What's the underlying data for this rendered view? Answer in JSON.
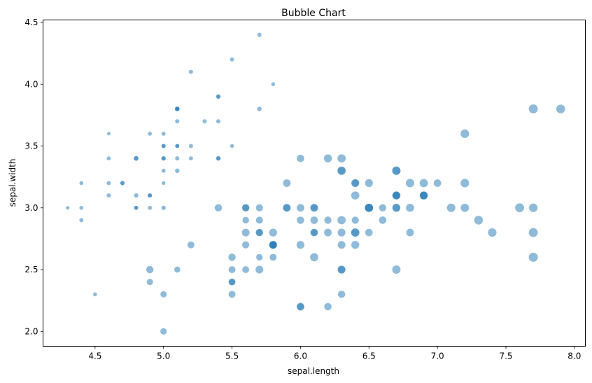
{
  "chart_data": {
    "type": "scatter",
    "title": "Bubble Chart",
    "xlabel": "sepal.length",
    "ylabel": "sepal.width",
    "xlim": [
      4.12,
      8.08
    ],
    "ylim": [
      1.88,
      4.52
    ],
    "xticks": [
      4.5,
      5.0,
      5.5,
      6.0,
      6.5,
      7.0,
      7.5,
      8.0
    ],
    "yticks": [
      2.0,
      2.5,
      3.0,
      3.5,
      4.0,
      4.5
    ],
    "marker_color": "#1f77b4",
    "marker_alpha": 0.5,
    "size_encoding": "petal.length",
    "grid": false,
    "points": [
      {
        "x": 5.1,
        "y": 3.5,
        "size": 1.4
      },
      {
        "x": 4.9,
        "y": 3.0,
        "size": 1.4
      },
      {
        "x": 4.7,
        "y": 3.2,
        "size": 1.3
      },
      {
        "x": 4.6,
        "y": 3.1,
        "size": 1.5
      },
      {
        "x": 5.0,
        "y": 3.6,
        "size": 1.4
      },
      {
        "x": 5.4,
        "y": 3.9,
        "size": 1.7
      },
      {
        "x": 4.6,
        "y": 3.4,
        "size": 1.4
      },
      {
        "x": 5.0,
        "y": 3.4,
        "size": 1.5
      },
      {
        "x": 4.4,
        "y": 2.9,
        "size": 1.4
      },
      {
        "x": 4.9,
        "y": 3.1,
        "size": 1.5
      },
      {
        "x": 5.4,
        "y": 3.7,
        "size": 1.5
      },
      {
        "x": 4.8,
        "y": 3.4,
        "size": 1.6
      },
      {
        "x": 4.8,
        "y": 3.0,
        "size": 1.4
      },
      {
        "x": 4.3,
        "y": 3.0,
        "size": 1.1
      },
      {
        "x": 5.8,
        "y": 4.0,
        "size": 1.2
      },
      {
        "x": 5.7,
        "y": 4.4,
        "size": 1.5
      },
      {
        "x": 5.4,
        "y": 3.9,
        "size": 1.3
      },
      {
        "x": 5.1,
        "y": 3.5,
        "size": 1.4
      },
      {
        "x": 5.7,
        "y": 3.8,
        "size": 1.7
      },
      {
        "x": 5.1,
        "y": 3.8,
        "size": 1.5
      },
      {
        "x": 5.4,
        "y": 3.4,
        "size": 1.7
      },
      {
        "x": 5.1,
        "y": 3.7,
        "size": 1.5
      },
      {
        "x": 4.6,
        "y": 3.6,
        "size": 1.0
      },
      {
        "x": 5.1,
        "y": 3.3,
        "size": 1.7
      },
      {
        "x": 4.8,
        "y": 3.4,
        "size": 1.9
      },
      {
        "x": 5.0,
        "y": 3.0,
        "size": 1.6
      },
      {
        "x": 5.0,
        "y": 3.4,
        "size": 1.6
      },
      {
        "x": 5.2,
        "y": 3.5,
        "size": 1.5
      },
      {
        "x": 5.2,
        "y": 3.4,
        "size": 1.4
      },
      {
        "x": 4.7,
        "y": 3.2,
        "size": 1.6
      },
      {
        "x": 4.8,
        "y": 3.1,
        "size": 1.6
      },
      {
        "x": 5.4,
        "y": 3.4,
        "size": 1.5
      },
      {
        "x": 5.2,
        "y": 4.1,
        "size": 1.5
      },
      {
        "x": 5.5,
        "y": 4.2,
        "size": 1.4
      },
      {
        "x": 4.9,
        "y": 3.1,
        "size": 1.5
      },
      {
        "x": 5.0,
        "y": 3.2,
        "size": 1.2
      },
      {
        "x": 5.5,
        "y": 3.5,
        "size": 1.3
      },
      {
        "x": 4.9,
        "y": 3.6,
        "size": 1.4
      },
      {
        "x": 4.4,
        "y": 3.0,
        "size": 1.3
      },
      {
        "x": 5.1,
        "y": 3.4,
        "size": 1.5
      },
      {
        "x": 5.0,
        "y": 3.5,
        "size": 1.3
      },
      {
        "x": 4.5,
        "y": 2.3,
        "size": 1.3
      },
      {
        "x": 4.4,
        "y": 3.2,
        "size": 1.3
      },
      {
        "x": 5.0,
        "y": 3.5,
        "size": 1.6
      },
      {
        "x": 5.1,
        "y": 3.8,
        "size": 1.9
      },
      {
        "x": 4.8,
        "y": 3.0,
        "size": 1.4
      },
      {
        "x": 5.1,
        "y": 3.8,
        "size": 1.6
      },
      {
        "x": 4.6,
        "y": 3.2,
        "size": 1.4
      },
      {
        "x": 5.3,
        "y": 3.7,
        "size": 1.5
      },
      {
        "x": 5.0,
        "y": 3.3,
        "size": 1.4
      },
      {
        "x": 7.0,
        "y": 3.2,
        "size": 4.7
      },
      {
        "x": 6.4,
        "y": 3.2,
        "size": 4.5
      },
      {
        "x": 6.9,
        "y": 3.1,
        "size": 4.9
      },
      {
        "x": 5.5,
        "y": 2.3,
        "size": 4.0
      },
      {
        "x": 6.5,
        "y": 2.8,
        "size": 4.6
      },
      {
        "x": 5.7,
        "y": 2.8,
        "size": 4.5
      },
      {
        "x": 6.3,
        "y": 3.3,
        "size": 4.7
      },
      {
        "x": 4.9,
        "y": 2.4,
        "size": 3.3
      },
      {
        "x": 6.6,
        "y": 2.9,
        "size": 4.6
      },
      {
        "x": 5.2,
        "y": 2.7,
        "size": 3.9
      },
      {
        "x": 5.0,
        "y": 2.0,
        "size": 3.5
      },
      {
        "x": 5.9,
        "y": 3.0,
        "size": 4.2
      },
      {
        "x": 6.0,
        "y": 2.2,
        "size": 4.0
      },
      {
        "x": 6.1,
        "y": 2.9,
        "size": 4.7
      },
      {
        "x": 5.6,
        "y": 2.9,
        "size": 3.6
      },
      {
        "x": 6.7,
        "y": 3.1,
        "size": 4.4
      },
      {
        "x": 5.6,
        "y": 3.0,
        "size": 4.5
      },
      {
        "x": 5.8,
        "y": 2.7,
        "size": 4.1
      },
      {
        "x": 6.2,
        "y": 2.2,
        "size": 4.5
      },
      {
        "x": 5.6,
        "y": 2.5,
        "size": 3.9
      },
      {
        "x": 5.9,
        "y": 3.2,
        "size": 4.8
      },
      {
        "x": 6.1,
        "y": 2.8,
        "size": 4.0
      },
      {
        "x": 6.3,
        "y": 2.5,
        "size": 4.9
      },
      {
        "x": 6.1,
        "y": 2.8,
        "size": 4.7
      },
      {
        "x": 6.4,
        "y": 2.9,
        "size": 4.3
      },
      {
        "x": 6.6,
        "y": 3.0,
        "size": 4.4
      },
      {
        "x": 6.8,
        "y": 2.8,
        "size": 4.8
      },
      {
        "x": 6.7,
        "y": 3.0,
        "size": 5.0
      },
      {
        "x": 6.0,
        "y": 2.9,
        "size": 4.5
      },
      {
        "x": 5.7,
        "y": 2.6,
        "size": 3.5
      },
      {
        "x": 5.5,
        "y": 2.4,
        "size": 3.8
      },
      {
        "x": 5.5,
        "y": 2.4,
        "size": 3.7
      },
      {
        "x": 5.8,
        "y": 2.7,
        "size": 3.9
      },
      {
        "x": 6.0,
        "y": 2.7,
        "size": 5.1
      },
      {
        "x": 5.4,
        "y": 3.0,
        "size": 4.5
      },
      {
        "x": 6.0,
        "y": 3.4,
        "size": 4.5
      },
      {
        "x": 6.7,
        "y": 3.1,
        "size": 4.7
      },
      {
        "x": 6.3,
        "y": 2.3,
        "size": 4.4
      },
      {
        "x": 5.6,
        "y": 3.0,
        "size": 4.1
      },
      {
        "x": 5.5,
        "y": 2.5,
        "size": 4.0
      },
      {
        "x": 5.5,
        "y": 2.6,
        "size": 4.4
      },
      {
        "x": 6.1,
        "y": 3.0,
        "size": 4.6
      },
      {
        "x": 5.8,
        "y": 2.6,
        "size": 4.0
      },
      {
        "x": 5.0,
        "y": 2.3,
        "size": 3.3
      },
      {
        "x": 5.6,
        "y": 2.7,
        "size": 4.2
      },
      {
        "x": 5.7,
        "y": 3.0,
        "size": 4.2
      },
      {
        "x": 5.7,
        "y": 2.9,
        "size": 4.2
      },
      {
        "x": 6.2,
        "y": 2.9,
        "size": 4.3
      },
      {
        "x": 5.1,
        "y": 2.5,
        "size": 3.0
      },
      {
        "x": 5.7,
        "y": 2.8,
        "size": 4.1
      },
      {
        "x": 6.3,
        "y": 3.3,
        "size": 6.0
      },
      {
        "x": 5.8,
        "y": 2.7,
        "size": 5.1
      },
      {
        "x": 7.1,
        "y": 3.0,
        "size": 5.9
      },
      {
        "x": 6.3,
        "y": 2.9,
        "size": 5.6
      },
      {
        "x": 6.5,
        "y": 3.0,
        "size": 5.8
      },
      {
        "x": 7.6,
        "y": 3.0,
        "size": 6.6
      },
      {
        "x": 4.9,
        "y": 2.5,
        "size": 4.5
      },
      {
        "x": 7.3,
        "y": 2.9,
        "size": 6.3
      },
      {
        "x": 6.7,
        "y": 2.5,
        "size": 5.8
      },
      {
        "x": 7.2,
        "y": 3.6,
        "size": 6.1
      },
      {
        "x": 6.5,
        "y": 3.2,
        "size": 5.1
      },
      {
        "x": 6.4,
        "y": 2.7,
        "size": 5.3
      },
      {
        "x": 6.8,
        "y": 3.0,
        "size": 5.5
      },
      {
        "x": 5.7,
        "y": 2.5,
        "size": 5.0
      },
      {
        "x": 5.8,
        "y": 2.8,
        "size": 5.1
      },
      {
        "x": 6.4,
        "y": 3.2,
        "size": 5.3
      },
      {
        "x": 6.5,
        "y": 3.0,
        "size": 5.5
      },
      {
        "x": 7.7,
        "y": 3.8,
        "size": 6.7
      },
      {
        "x": 7.7,
        "y": 2.6,
        "size": 6.9
      },
      {
        "x": 6.0,
        "y": 2.2,
        "size": 5.0
      },
      {
        "x": 6.9,
        "y": 3.2,
        "size": 5.7
      },
      {
        "x": 5.6,
        "y": 2.8,
        "size": 4.9
      },
      {
        "x": 7.7,
        "y": 2.8,
        "size": 6.7
      },
      {
        "x": 6.3,
        "y": 2.7,
        "size": 4.9
      },
      {
        "x": 6.7,
        "y": 3.3,
        "size": 5.7
      },
      {
        "x": 7.2,
        "y": 3.2,
        "size": 6.0
      },
      {
        "x": 6.2,
        "y": 2.8,
        "size": 4.8
      },
      {
        "x": 6.1,
        "y": 3.0,
        "size": 4.9
      },
      {
        "x": 6.4,
        "y": 2.8,
        "size": 5.6
      },
      {
        "x": 7.2,
        "y": 3.0,
        "size": 5.8
      },
      {
        "x": 7.4,
        "y": 2.8,
        "size": 6.1
      },
      {
        "x": 7.9,
        "y": 3.8,
        "size": 6.4
      },
      {
        "x": 6.4,
        "y": 2.8,
        "size": 5.6
      },
      {
        "x": 6.3,
        "y": 2.8,
        "size": 5.1
      },
      {
        "x": 6.1,
        "y": 2.6,
        "size": 5.6
      },
      {
        "x": 7.7,
        "y": 3.0,
        "size": 6.1
      },
      {
        "x": 6.3,
        "y": 3.4,
        "size": 5.6
      },
      {
        "x": 6.4,
        "y": 3.1,
        "size": 5.5
      },
      {
        "x": 6.0,
        "y": 3.0,
        "size": 4.8
      },
      {
        "x": 6.9,
        "y": 3.1,
        "size": 5.4
      },
      {
        "x": 6.7,
        "y": 3.1,
        "size": 5.6
      },
      {
        "x": 6.9,
        "y": 3.1,
        "size": 5.1
      },
      {
        "x": 5.8,
        "y": 2.7,
        "size": 5.1
      },
      {
        "x": 6.8,
        "y": 3.2,
        "size": 5.9
      },
      {
        "x": 6.7,
        "y": 3.3,
        "size": 5.7
      },
      {
        "x": 6.7,
        "y": 3.0,
        "size": 5.2
      },
      {
        "x": 6.3,
        "y": 2.5,
        "size": 5.0
      },
      {
        "x": 6.5,
        "y": 3.0,
        "size": 5.2
      },
      {
        "x": 6.2,
        "y": 3.4,
        "size": 5.4
      },
      {
        "x": 5.9,
        "y": 3.0,
        "size": 5.1
      }
    ]
  }
}
